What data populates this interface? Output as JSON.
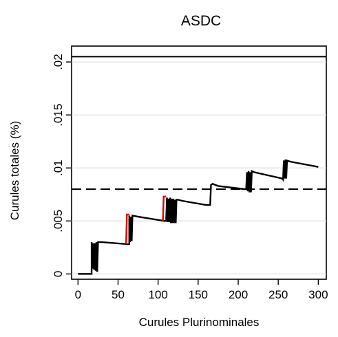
{
  "chart_data": {
    "type": "line",
    "title": "ASDC",
    "xlabel": "Curules Plurinominales",
    "ylabel": "Curules totales (%)",
    "xlim": [
      -8,
      310
    ],
    "ylim": [
      -0.0005,
      0.0215
    ],
    "x_ticks": [
      0,
      50,
      100,
      150,
      200,
      250,
      300
    ],
    "x_tick_labels": [
      "0",
      "50",
      "100",
      "150",
      "200",
      "250",
      "300"
    ],
    "y_ticks": [
      0,
      0.005,
      0.01,
      0.015,
      0.02
    ],
    "y_tick_labels": [
      "0",
      ".005",
      ".01",
      ".015",
      ".02"
    ],
    "grid": "horizontal",
    "reference_lines": [
      {
        "axis": "y",
        "value": 0.0205,
        "style": "solid"
      },
      {
        "axis": "y",
        "value": 0.008,
        "style": "dashed"
      }
    ],
    "series": [
      {
        "color": "#000000",
        "points": [
          [
            0,
            0
          ],
          [
            17,
            0
          ],
          [
            17,
            0.003
          ],
          [
            18,
            0.0005
          ],
          [
            19,
            0.0029
          ],
          [
            20,
            0.0004
          ],
          [
            21,
            0.0029
          ],
          [
            22,
            0.0003
          ],
          [
            23,
            0.003
          ],
          [
            24,
            0.0002
          ],
          [
            25,
            0.003
          ],
          [
            30,
            0.003
          ],
          [
            62,
            0.0028
          ],
          [
            64,
            0.0028
          ],
          [
            64,
            0.0055
          ],
          [
            65,
            0.003
          ],
          [
            66,
            0.0054
          ],
          [
            67,
            0.0031
          ],
          [
            68,
            0.0055
          ],
          [
            75,
            0.0054
          ],
          [
            108,
            0.005
          ],
          [
            110,
            0.005
          ],
          [
            111,
            0.0072
          ],
          [
            112,
            0.0049
          ],
          [
            113,
            0.0071
          ],
          [
            114,
            0.0049
          ],
          [
            115,
            0.0072
          ],
          [
            116,
            0.0048
          ],
          [
            117,
            0.0071
          ],
          [
            118,
            0.0048
          ],
          [
            119,
            0.0071
          ],
          [
            120,
            0.0048
          ],
          [
            121,
            0.007
          ],
          [
            122,
            0.0048
          ],
          [
            123,
            0.007
          ],
          [
            125,
            0.007
          ],
          [
            130,
            0.0069
          ],
          [
            160,
            0.0065
          ],
          [
            165,
            0.0065
          ],
          [
            166,
            0.0084
          ],
          [
            168,
            0.0085
          ],
          [
            175,
            0.0083
          ],
          [
            208,
            0.008
          ],
          [
            210,
            0.008
          ],
          [
            211,
            0.0096
          ],
          [
            212,
            0.0078
          ],
          [
            213,
            0.0097
          ],
          [
            214,
            0.0077
          ],
          [
            215,
            0.0096
          ],
          [
            216,
            0.0077
          ],
          [
            217,
            0.0097
          ],
          [
            220,
            0.0096
          ],
          [
            255,
            0.009
          ],
          [
            256,
            0.0089
          ],
          [
            257,
            0.0107
          ],
          [
            258,
            0.009
          ],
          [
            259,
            0.0108
          ],
          [
            260,
            0.009
          ],
          [
            261,
            0.0107
          ],
          [
            265,
            0.0106
          ],
          [
            300,
            0.0101
          ]
        ]
      },
      {
        "color": "#e00000",
        "points": [
          [
            60,
            0.0028
          ],
          [
            61,
            0.0056
          ],
          [
            64,
            0.0056
          ]
        ]
      },
      {
        "color": "#e00000",
        "points": [
          [
            106,
            0.005
          ],
          [
            107,
            0.0073
          ],
          [
            110,
            0.0073
          ]
        ]
      }
    ]
  }
}
